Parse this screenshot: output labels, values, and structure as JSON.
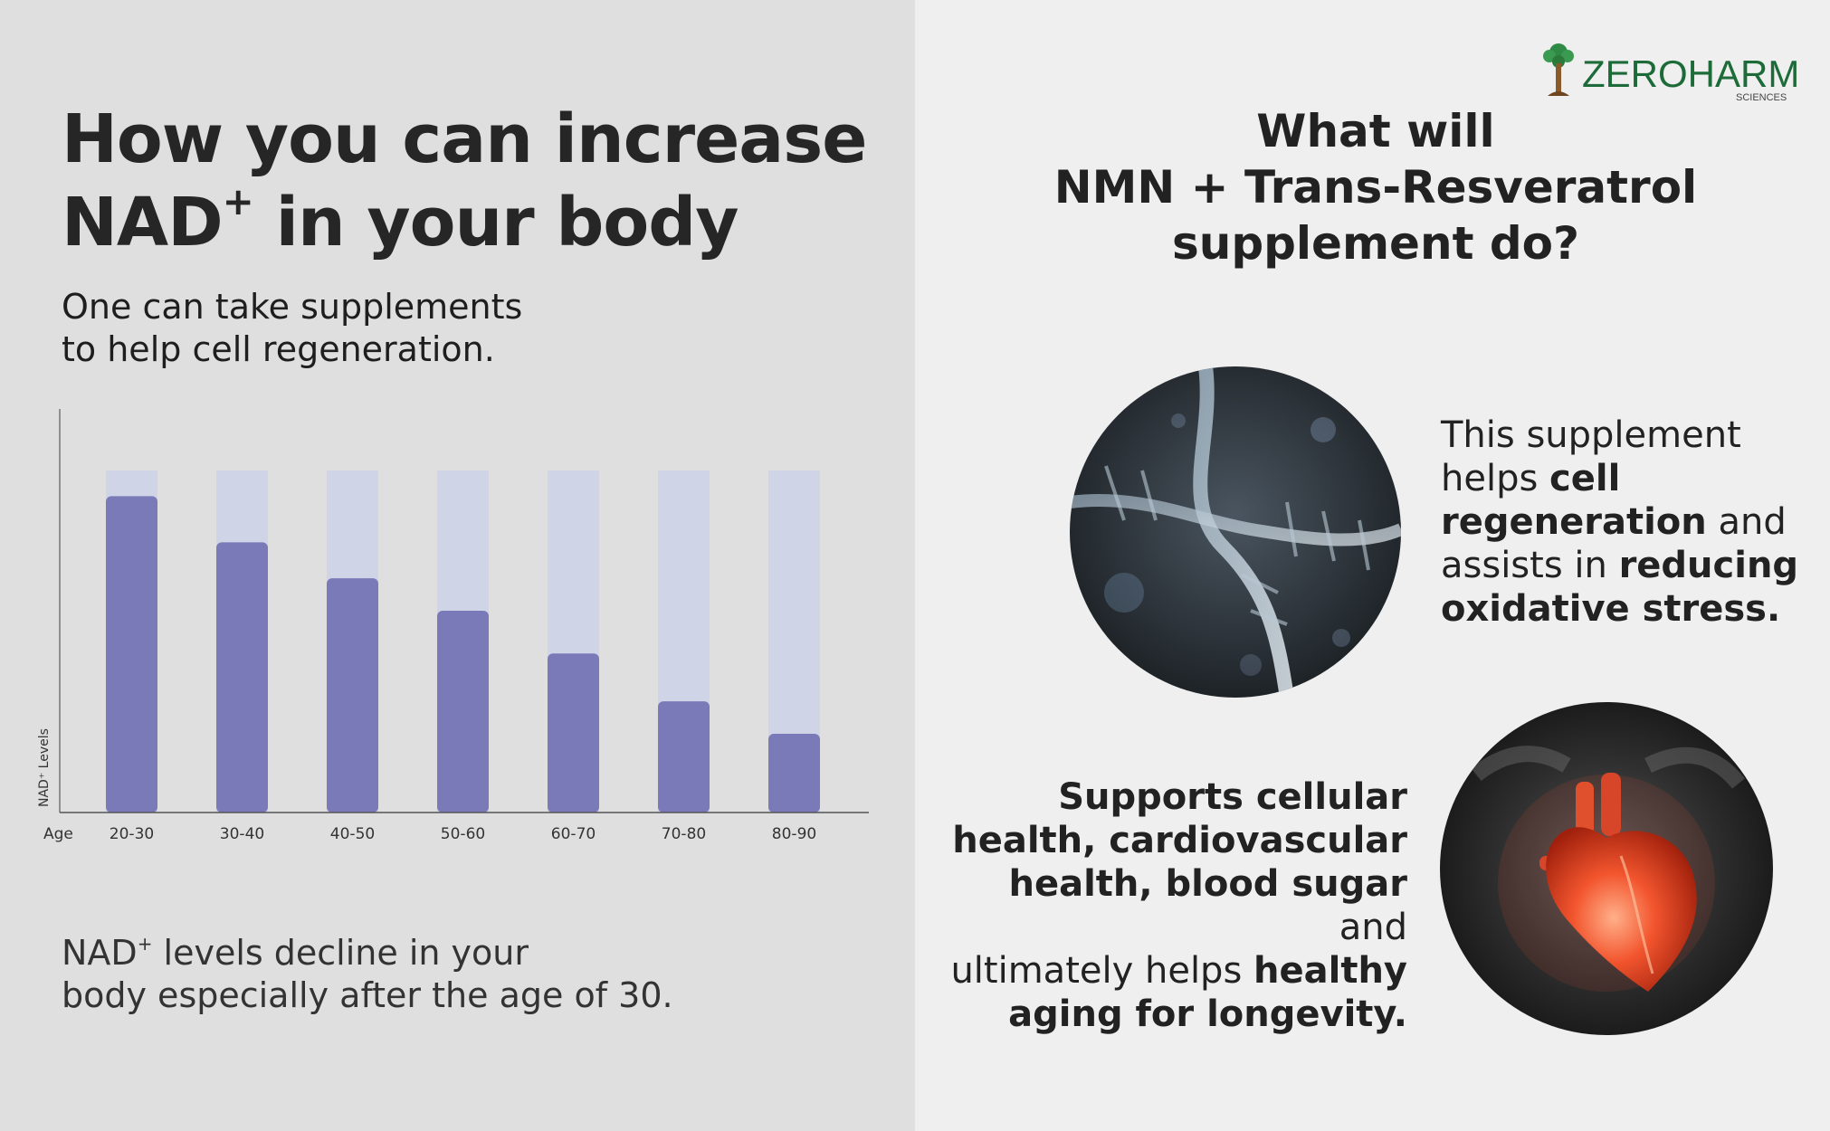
{
  "left": {
    "title_line1": "How you can increase",
    "title_line2_pre": "NAD",
    "title_line2_sup": "+",
    "title_line2_post": " in your body",
    "subtitle_line1": "One can take supplements",
    "subtitle_line2": "to help cell regeneration.",
    "footnote_line1_pre": "NAD",
    "footnote_line1_sup": "+",
    "footnote_line1_post": " levels decline in your",
    "footnote_line2": "body especially after the age of 30."
  },
  "chart_data": {
    "type": "bar",
    "categories": [
      "20-30",
      "30-40",
      "40-50",
      "50-60",
      "60-70",
      "70-80",
      "80-90"
    ],
    "values": [
      92.5,
      79,
      68.5,
      59,
      46.5,
      32.5,
      23
    ],
    "ylim": [
      0,
      100
    ],
    "xlabel": "Age",
    "ylabel": "NAD⁺ Levels",
    "grid": false,
    "legend": "none",
    "colors": {
      "bar": "#7a7ab8",
      "background_bar": "#cfd4e6",
      "axis": "#555555"
    }
  },
  "right": {
    "title_line1": "What will",
    "title_line2": "NMN + Trans-Resveratrol",
    "title_line3": "supplement do?",
    "logo_text": "ZEROHARM",
    "logo_sub": "SCIENCES",
    "desc1": {
      "t1": "This supplement",
      "t2": "helps ",
      "b1": "cell",
      "b2": "regeneration",
      "t3": " and",
      "t4": "assists in ",
      "b3": "reducing",
      "b4": "oxidative stress."
    },
    "desc2": {
      "b1": "Supports cellular",
      "b2": "health, cardiovascular",
      "b3": "health, blood sugar",
      "t1": " and",
      "t2": "ultimately helps ",
      "b4": "healthy",
      "b5": "aging for longevity."
    },
    "icons": {
      "dna": "dna-helix-icon",
      "heart": "heart-icon"
    }
  }
}
